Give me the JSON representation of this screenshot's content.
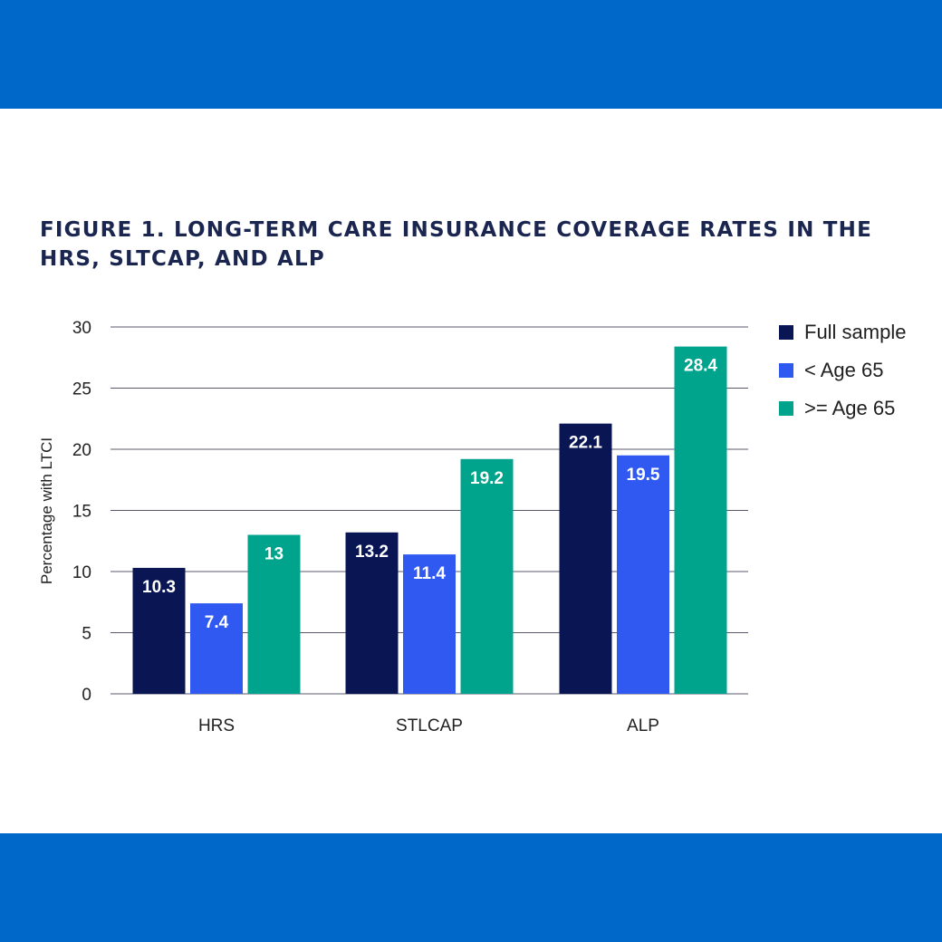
{
  "colors": {
    "band": "#0068c9",
    "full": "#0a1653",
    "under65": "#3059f2",
    "over65": "#00a38c",
    "grid": "#5a5a6e",
    "axis_text": "#222222"
  },
  "chart_data": {
    "type": "bar",
    "title": "FIGURE 1. LONG-TERM CARE INSURANCE COVERAGE RATES IN THE HRS, SLTCAP, AND ALP",
    "xlabel": "",
    "ylabel": "Percentage with LTCI",
    "ylim": [
      0,
      30
    ],
    "yticks": [
      0,
      5,
      10,
      15,
      20,
      25,
      30
    ],
    "categories": [
      "HRS",
      "STLCAP",
      "ALP"
    ],
    "series": [
      {
        "name": "Full sample",
        "values": [
          10.3,
          13.2,
          22.1
        ],
        "labels": [
          "10.3",
          "13.2",
          "22.1"
        ]
      },
      {
        "name": "< Age 65",
        "values": [
          7.4,
          11.4,
          19.5
        ],
        "labels": [
          "7.4",
          "11.4",
          "19.5"
        ]
      },
      {
        "name": ">= Age 65",
        "values": [
          13,
          19.2,
          28.4
        ],
        "labels": [
          "13",
          "19.2",
          "28.4"
        ]
      }
    ],
    "grid": true,
    "legend_position": "right"
  }
}
